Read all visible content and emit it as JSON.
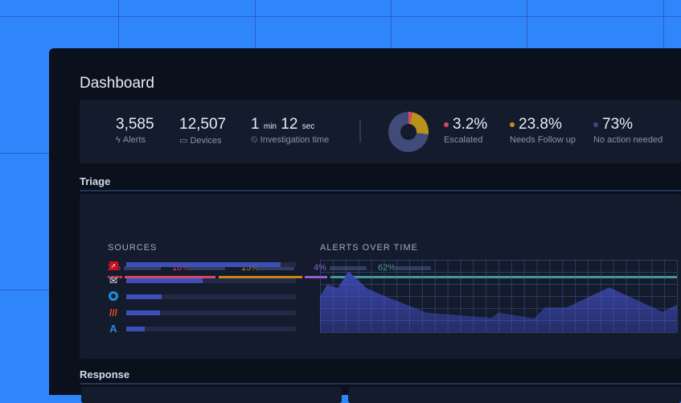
{
  "header": {
    "title": "Dashboard"
  },
  "stats": {
    "alerts": {
      "value": "3,585",
      "label": "Alerts",
      "icon": "lightning-icon"
    },
    "devices": {
      "value": "12,507",
      "label": "Devices",
      "icon": "laptop-icon"
    },
    "investigation": {
      "min": "1",
      "min_unit": "min",
      "sec": "12",
      "sec_unit": "sec",
      "label": "Investigation time",
      "icon": "timer-icon"
    }
  },
  "outcomes": [
    {
      "value": "3.2%",
      "label": "Escalated",
      "color": "#d8456a",
      "pct": 3.2
    },
    {
      "value": "23.8%",
      "label": "Needs Follow up",
      "color": "#b8921a",
      "pct": 23.8
    },
    {
      "value": "73%",
      "label": "No action needed",
      "color": "#414a78",
      "pct": 73
    }
  ],
  "triage": {
    "title": "Triage",
    "segments": [
      {
        "label": "3%",
        "color": "#d8456a",
        "hatched": true,
        "pct": 3
      },
      {
        "label": "16%",
        "color": "#d8456a",
        "pct": 16
      },
      {
        "label": "15%",
        "color": "#c8860e",
        "pct": 15
      },
      {
        "label": "4%",
        "color": "#8d5fd6",
        "pct": 4
      },
      {
        "label": "62%",
        "color": "#3f9b92",
        "pct": 62
      }
    ],
    "sources_title": "SOURCES",
    "sources": [
      {
        "icon": "crowdstrike-icon",
        "fill": 0.91
      },
      {
        "icon": "proofpoint-icon",
        "fill": 0.45
      },
      {
        "icon": "okta-icon",
        "fill": 0.21
      },
      {
        "icon": "palo-alto-icon",
        "fill": 0.2
      },
      {
        "icon": "azure-icon",
        "fill": 0.11
      }
    ],
    "chart_title": "ALERTS OVER TIME"
  },
  "chart_data": {
    "type": "area",
    "title": "ALERTS OVER TIME",
    "grid": true,
    "ylim": [
      0,
      100
    ],
    "xlim": [
      0,
      100
    ],
    "x": [
      0,
      2,
      5,
      8,
      13,
      18,
      30,
      48,
      50,
      60,
      63,
      69,
      81,
      96,
      100
    ],
    "values": [
      49,
      66,
      61,
      84,
      61,
      50,
      27,
      20,
      27,
      19,
      34,
      34,
      62,
      28,
      38
    ]
  },
  "response": {
    "title": "Response"
  }
}
